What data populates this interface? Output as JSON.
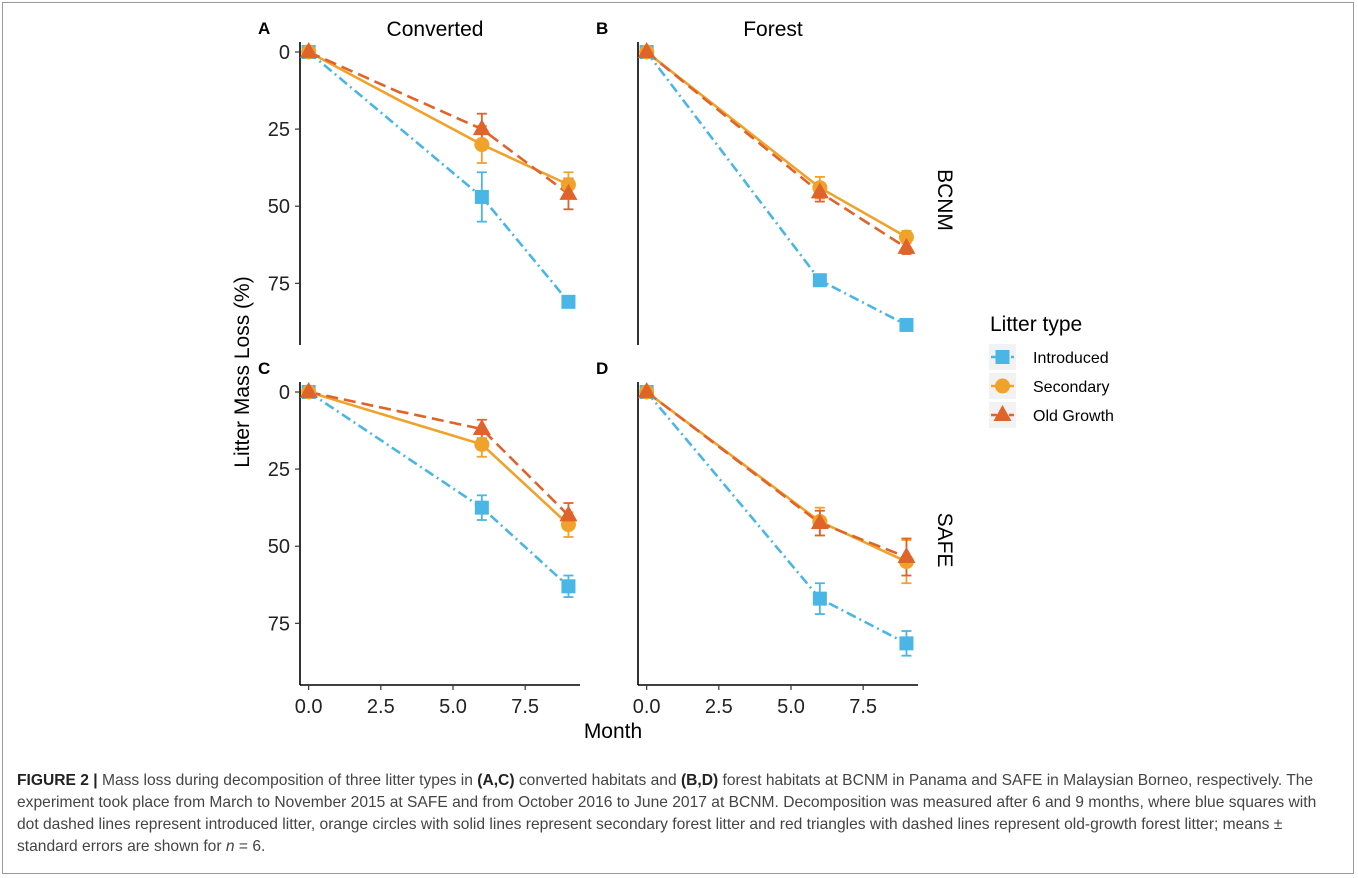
{
  "figure": {
    "ylabel": "Litter Mass Loss (%)",
    "xlabel": "Month",
    "legend": {
      "title": "Litter type",
      "items": [
        "Introduced",
        "Secondary",
        "Old Growth"
      ]
    },
    "caption": {
      "label": "FIGURE 2 |",
      "t1": " Mass loss during decomposition of three litter types in ",
      "b1": "(A,C)",
      "t2": " converted habitats and ",
      "b2": "(B,D)",
      "t3": " forest habitats at BCNM in Panama and SAFE in Malaysian Borneo, respectively. The experiment took place from March to November 2015 at SAFE and from October 2016 to June 2017 at BCNM. Decomposition was measured after 6 and 9 months, where blue squares with dot dashed lines represent introduced litter, orange circles with solid lines represent secondary forest litter and red triangles with dashed lines represent old-growth forest litter; means ± standard errors are shown for ",
      "n": "n",
      "t4": " = 6."
    }
  },
  "colors": {
    "Introduced": "#4ab6e6",
    "Secondary": "#f0a22b",
    "Old Growth": "#e0632a"
  },
  "chart_data": [
    {
      "type": "line",
      "panel": "A",
      "column": "Converted",
      "row": "",
      "xlim": [
        -0.3,
        9.4
      ],
      "ylim": [
        0,
        95
      ],
      "y_reversed": true,
      "xticks": [
        "0.0",
        "2.5",
        "5.0",
        "7.5"
      ],
      "yticks": [
        "0",
        "25",
        "50",
        "75"
      ],
      "show_xaxis": false,
      "series": [
        {
          "name": "Introduced",
          "x": [
            0,
            6,
            9
          ],
          "y": [
            0,
            47,
            81
          ],
          "err": [
            0,
            8,
            1.5
          ]
        },
        {
          "name": "Secondary",
          "x": [
            0,
            6,
            9
          ],
          "y": [
            0,
            30,
            43
          ],
          "err": [
            0,
            6,
            4
          ]
        },
        {
          "name": "Old Growth",
          "x": [
            0,
            6,
            9
          ],
          "y": [
            0,
            25,
            46
          ],
          "err": [
            0,
            5,
            5
          ]
        }
      ]
    },
    {
      "type": "line",
      "panel": "B",
      "column": "Forest",
      "row": "BCNM",
      "xlim": [
        -0.3,
        9.4
      ],
      "ylim": [
        0,
        95
      ],
      "y_reversed": true,
      "xticks": [
        "0.0",
        "2.5",
        "5.0",
        "7.5"
      ],
      "yticks": [],
      "show_xaxis": false,
      "series": [
        {
          "name": "Introduced",
          "x": [
            0,
            6,
            9
          ],
          "y": [
            0,
            74,
            88.5
          ],
          "err": [
            0,
            1.5,
            1
          ]
        },
        {
          "name": "Secondary",
          "x": [
            0,
            6,
            9
          ],
          "y": [
            0,
            44,
            60
          ],
          "err": [
            0,
            3.5,
            2
          ]
        },
        {
          "name": "Old Growth",
          "x": [
            0,
            6,
            9
          ],
          "y": [
            0,
            45.5,
            63.5
          ],
          "err": [
            0,
            3,
            2
          ]
        }
      ]
    },
    {
      "type": "line",
      "panel": "C",
      "column": "",
      "row": "",
      "xlim": [
        -0.3,
        9.4
      ],
      "ylim": [
        0,
        95
      ],
      "y_reversed": true,
      "xticks": [
        "0.0",
        "2.5",
        "5.0",
        "7.5"
      ],
      "yticks": [
        "0",
        "25",
        "50",
        "75"
      ],
      "show_xaxis": true,
      "series": [
        {
          "name": "Introduced",
          "x": [
            0,
            6,
            9
          ],
          "y": [
            0,
            37.5,
            63
          ],
          "err": [
            0,
            4,
            3.5
          ]
        },
        {
          "name": "Secondary",
          "x": [
            0,
            6,
            9
          ],
          "y": [
            0,
            17,
            43
          ],
          "err": [
            0,
            4,
            4
          ]
        },
        {
          "name": "Old Growth",
          "x": [
            0,
            6,
            9
          ],
          "y": [
            0,
            12,
            40
          ],
          "err": [
            0,
            3,
            4
          ]
        }
      ]
    },
    {
      "type": "line",
      "panel": "D",
      "column": "",
      "row": "SAFE",
      "xlim": [
        -0.3,
        9.4
      ],
      "ylim": [
        0,
        95
      ],
      "y_reversed": true,
      "xticks": [
        "0.0",
        "2.5",
        "5.0",
        "7.5"
      ],
      "yticks": [],
      "show_xaxis": true,
      "series": [
        {
          "name": "Introduced",
          "x": [
            0,
            6,
            9
          ],
          "y": [
            0,
            67,
            81.5
          ],
          "err": [
            0,
            5,
            4
          ]
        },
        {
          "name": "Secondary",
          "x": [
            0,
            6,
            9
          ],
          "y": [
            0,
            42,
            55
          ],
          "err": [
            0,
            4.5,
            7
          ]
        },
        {
          "name": "Old Growth",
          "x": [
            0,
            6,
            9
          ],
          "y": [
            0,
            42.5,
            53.5
          ],
          "err": [
            0,
            4,
            6
          ]
        }
      ]
    }
  ]
}
